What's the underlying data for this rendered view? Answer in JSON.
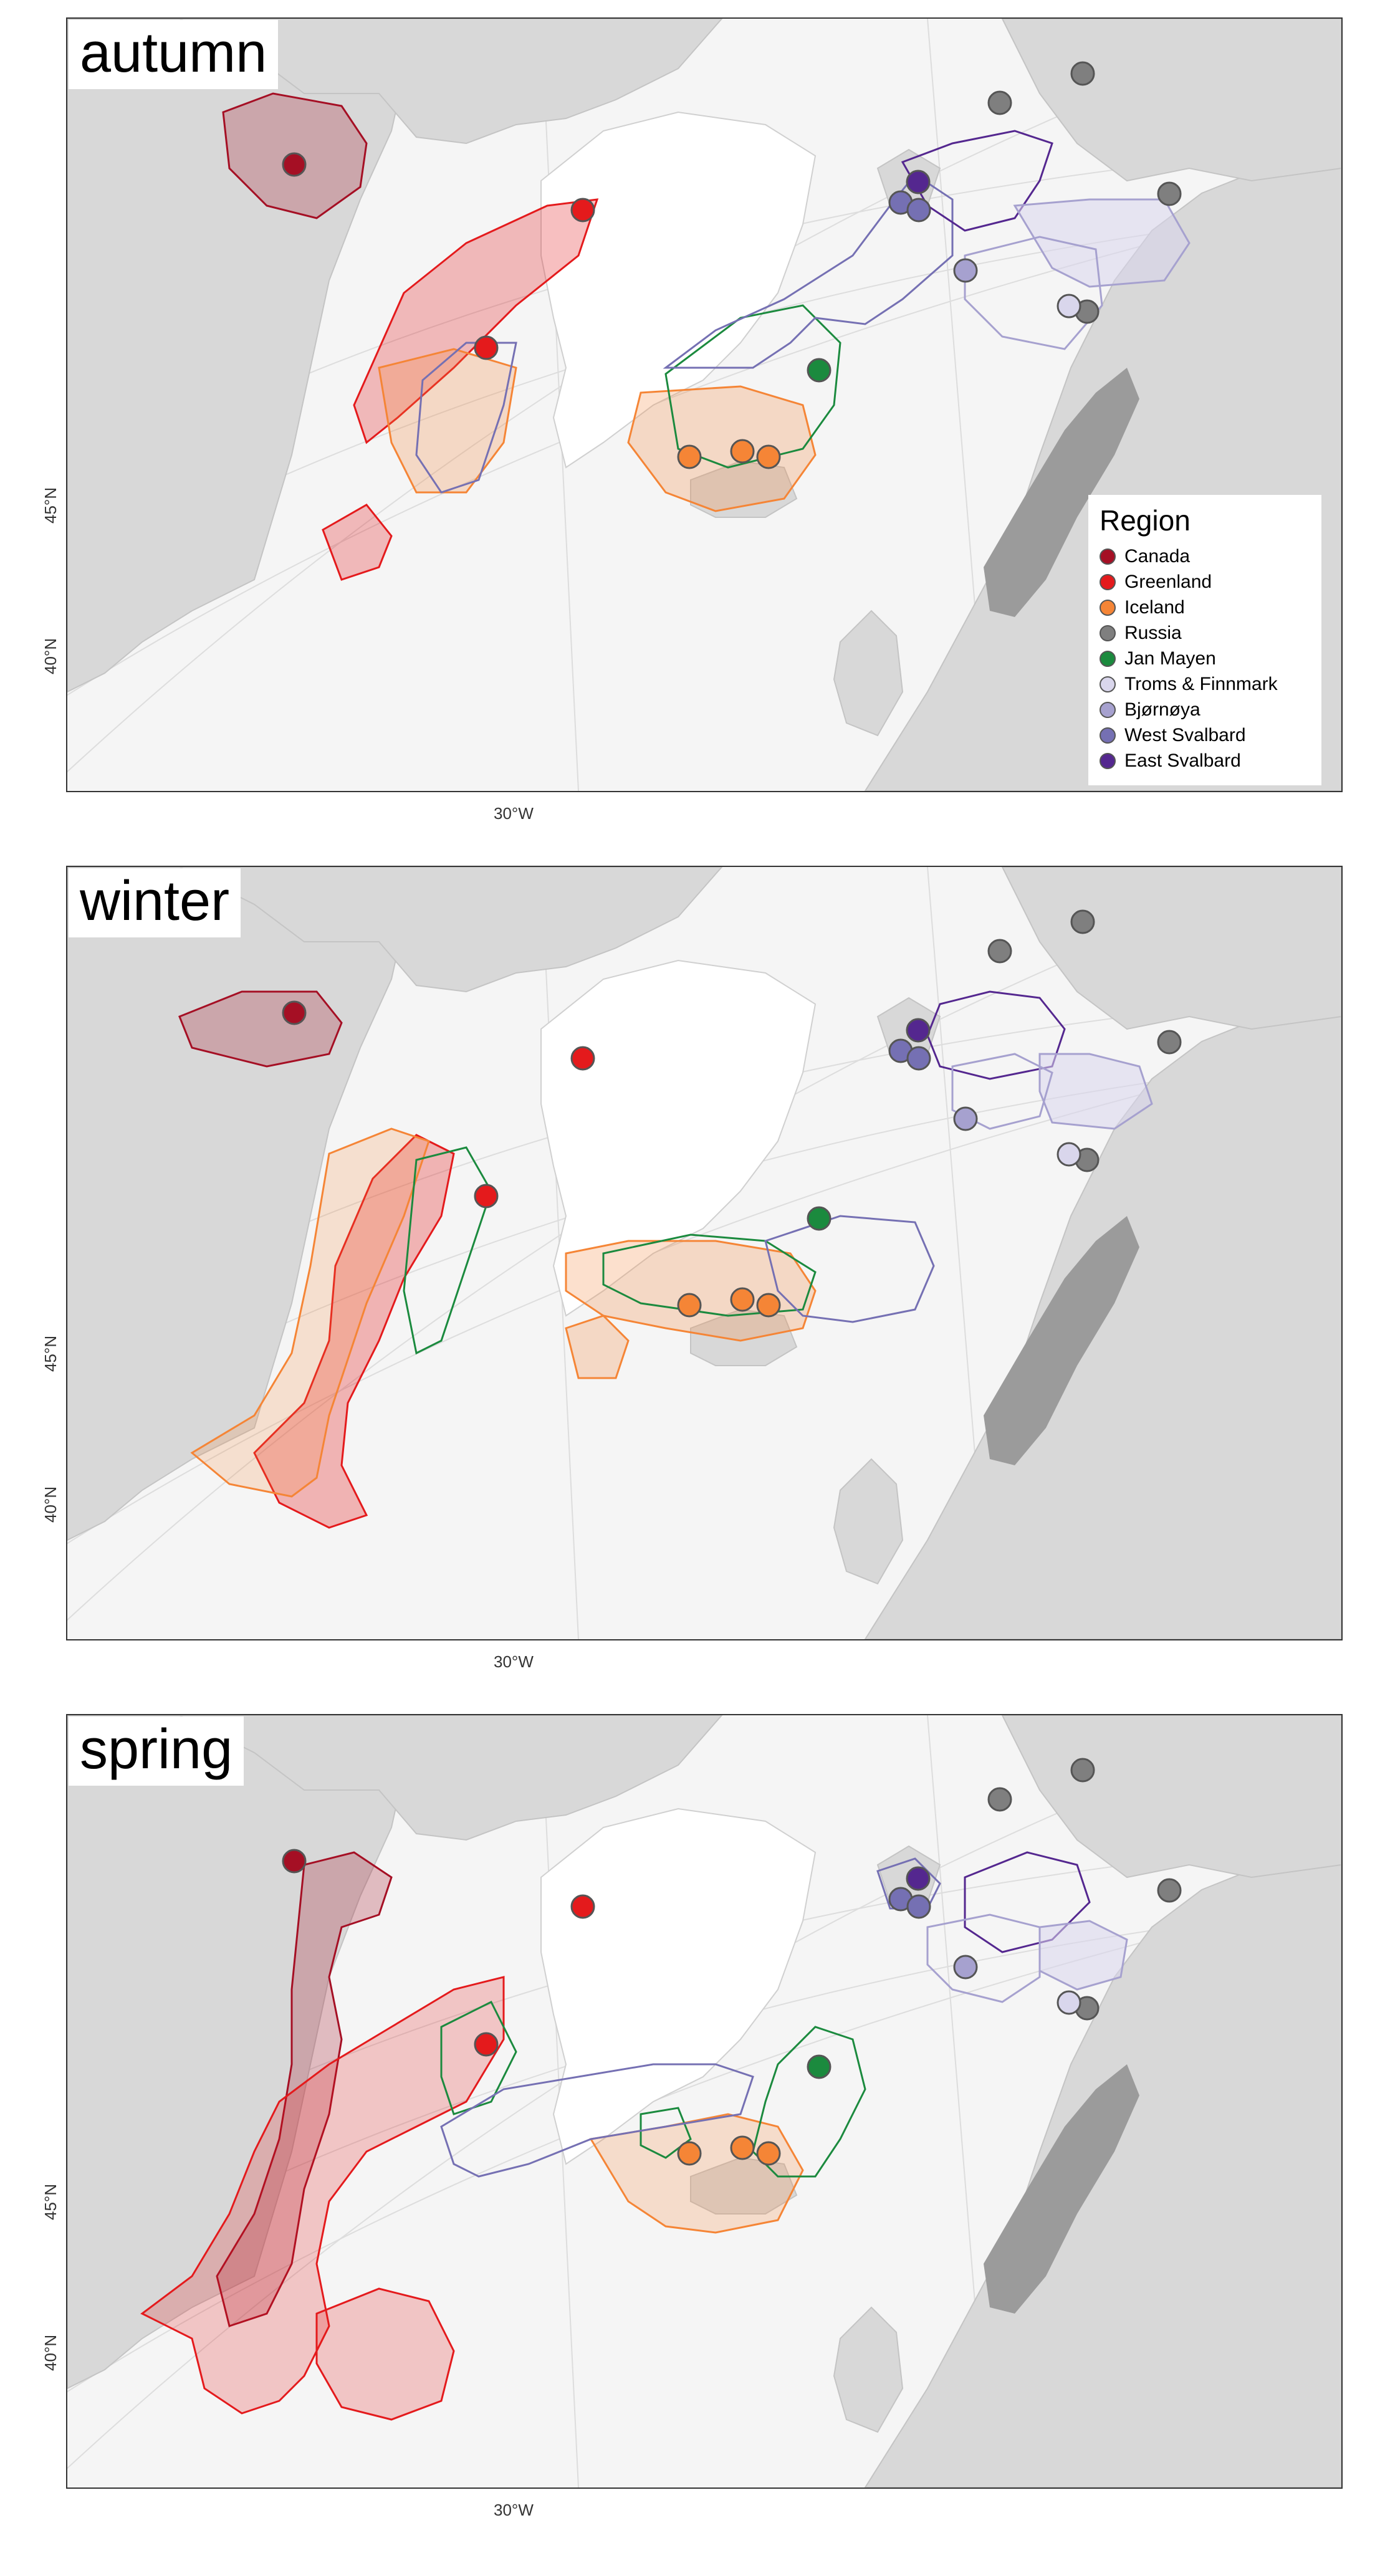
{
  "regions": [
    {
      "name": "Canada",
      "color": "#a50f24"
    },
    {
      "name": "Greenland",
      "color": "#e41a1c"
    },
    {
      "name": "Iceland",
      "color": "#f58536"
    },
    {
      "name": "Russia",
      "color": "#7f7f7f"
    },
    {
      "name": "Jan Mayen",
      "color": "#1b8a3e"
    },
    {
      "name": "Troms & Finnmark",
      "color": "#d9d6ec"
    },
    {
      "name": "Bjørnøya",
      "color": "#a6a1cf"
    },
    {
      "name": "West Svalbard",
      "color": "#7570b3"
    },
    {
      "name": "East Svalbard",
      "color": "#54278f"
    }
  ],
  "legend": {
    "title": "Region"
  },
  "axis": {
    "lon_label": "30°W",
    "lat_labels": [
      "45°N",
      "40°N"
    ]
  },
  "panels": [
    {
      "season": "autumn",
      "show_legend": true
    },
    {
      "season": "winter",
      "show_legend": false
    },
    {
      "season": "spring",
      "show_legend": false
    }
  ]
}
